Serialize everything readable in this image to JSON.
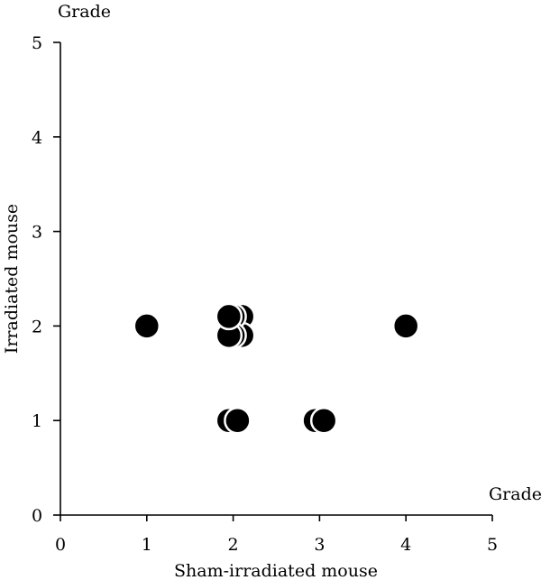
{
  "chart_data": {
    "type": "scatter",
    "title": "",
    "xlabel": "Sham-irradiated mouse",
    "ylabel": "Irradiated mouse",
    "x_unit_label": "Grade",
    "y_unit_label": "Grade",
    "xlim": [
      0,
      5
    ],
    "ylim": [
      0,
      5
    ],
    "x_ticks": [
      "0",
      "1",
      "2",
      "3",
      "4",
      "5"
    ],
    "y_ticks": [
      "0",
      "1",
      "2",
      "3",
      "4",
      "5"
    ],
    "grid": false,
    "legend": "none",
    "marker_color": "#000000",
    "points": [
      {
        "x": 1.0,
        "y": 2.0
      },
      {
        "x": 2.1,
        "y": 2.1
      },
      {
        "x": 2.1,
        "y": 1.9
      },
      {
        "x": 2.0,
        "y": 2.1
      },
      {
        "x": 2.0,
        "y": 1.9
      },
      {
        "x": 1.95,
        "y": 1.9
      },
      {
        "x": 1.95,
        "y": 2.1
      },
      {
        "x": 4.0,
        "y": 2.0
      },
      {
        "x": 1.95,
        "y": 1.0
      },
      {
        "x": 2.05,
        "y": 1.0
      },
      {
        "x": 2.95,
        "y": 1.0
      },
      {
        "x": 3.05,
        "y": 1.0
      }
    ]
  }
}
